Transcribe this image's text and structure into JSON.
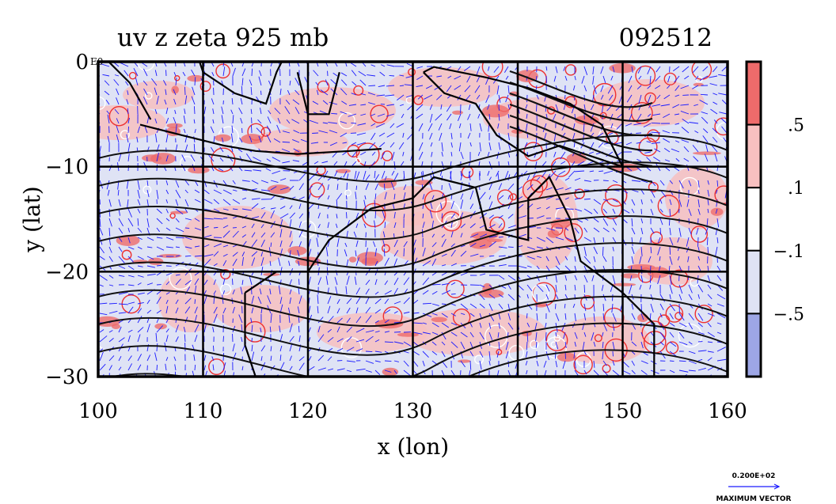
{
  "chart_data": {
    "type": "heatmap",
    "title": "uv z zeta 925 mb",
    "timestamp": "092512",
    "xlabel": "x (lon)",
    "ylabel": "y (lat)",
    "xlim": [
      100,
      160
    ],
    "ylim": [
      -30,
      0
    ],
    "x_ticks": [
      {
        "value": 100,
        "label": "100"
      },
      {
        "value": 110,
        "label": "110"
      },
      {
        "value": 120,
        "label": "120"
      },
      {
        "value": 130,
        "label": "130"
      },
      {
        "value": 140,
        "label": "140"
      },
      {
        "value": 150,
        "label": "150"
      },
      {
        "value": 160,
        "label": "160"
      }
    ],
    "y_ticks": [
      {
        "value": 0,
        "label": "0"
      },
      {
        "value": -10,
        "label": "−10"
      },
      {
        "value": -20,
        "label": "−20"
      },
      {
        "value": -30,
        "label": "−30"
      }
    ],
    "y_top_suffix": "E0",
    "grid": true,
    "colorbar": {
      "levels": [
        {
          "from": 0.5,
          "to": 1.0,
          "color": "#ee6b6b"
        },
        {
          "from": 0.1,
          "to": 0.5,
          "color": "#f7c0c0"
        },
        {
          "from": -0.1,
          "to": 0.1,
          "color": "#ffffff"
        },
        {
          "from": -0.5,
          "to": -0.1,
          "color": "#dfe3f5"
        },
        {
          "from": -1.0,
          "to": -0.5,
          "color": "#9da6e6"
        }
      ],
      "labels": [
        {
          "value": 0.5,
          "label": ".5"
        },
        {
          "value": 0.1,
          "label": ".1"
        },
        {
          "value": -0.1,
          "label": "−.1"
        },
        {
          "value": -0.5,
          "label": "−.5"
        }
      ]
    },
    "vector_legend": {
      "value": "0.200E+02",
      "label": "MAXIMUM VECTOR"
    },
    "colors": {
      "vectors": "#1a1aff",
      "contours": "#111111",
      "positive_zeta": "#ee3030",
      "negative_zeta": "#dfe3f5"
    }
  }
}
